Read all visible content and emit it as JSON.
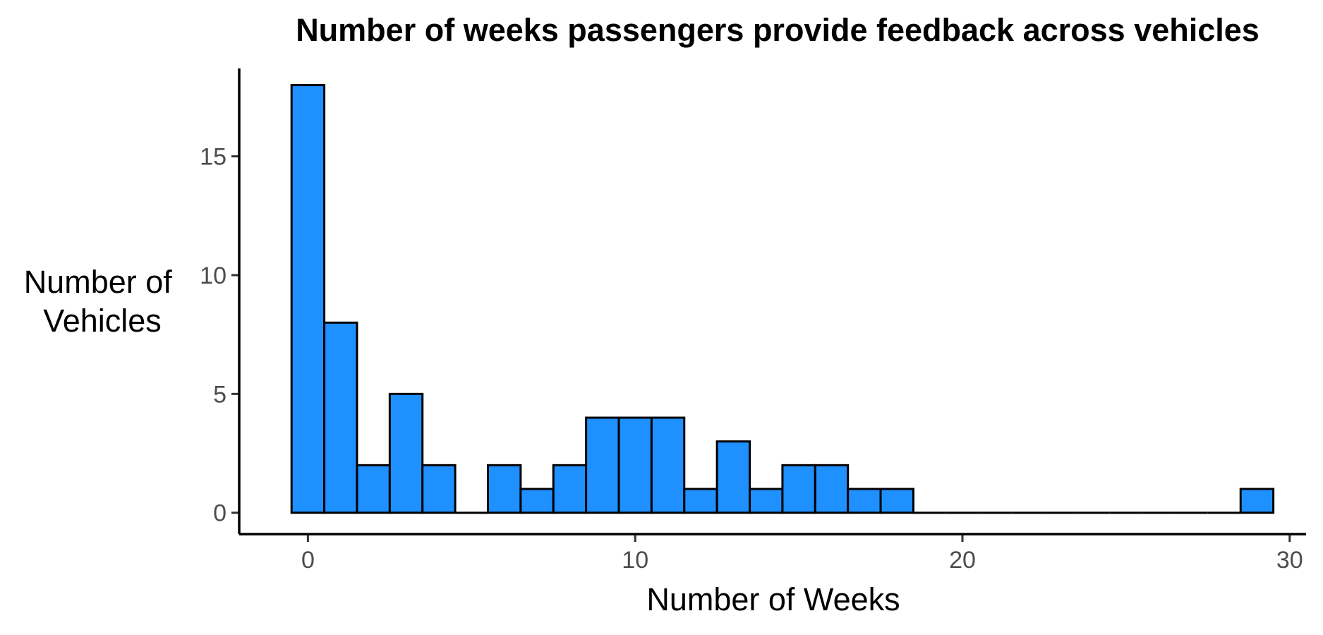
{
  "chart_data": {
    "type": "histogram",
    "title": "Number of weeks passengers provide feedback across vehicles",
    "xlabel": "Number of Weeks",
    "ylabel": [
      "Number of",
      "Vehicles"
    ],
    "bin_width": 1,
    "bin_centers": [
      0,
      1,
      2,
      3,
      4,
      5,
      6,
      7,
      8,
      9,
      10,
      11,
      12,
      13,
      14,
      15,
      16,
      17,
      18,
      19,
      20,
      21,
      22,
      23,
      24,
      25,
      26,
      27,
      28,
      29
    ],
    "counts": [
      18,
      8,
      2,
      5,
      2,
      0,
      2,
      1,
      2,
      4,
      4,
      4,
      1,
      3,
      1,
      2,
      2,
      1,
      1,
      0,
      0,
      0,
      0,
      0,
      0,
      0,
      0,
      0,
      0,
      1
    ],
    "xlim": [
      -2.1,
      30.5
    ],
    "ylim": [
      -0.9,
      18.7
    ],
    "x_ticks": [
      0,
      10,
      20,
      30
    ],
    "y_ticks": [
      0,
      5,
      10,
      15
    ],
    "bar_color": "#1E90FF",
    "bar_outline": "#000000",
    "grid": false,
    "legend": "none"
  }
}
